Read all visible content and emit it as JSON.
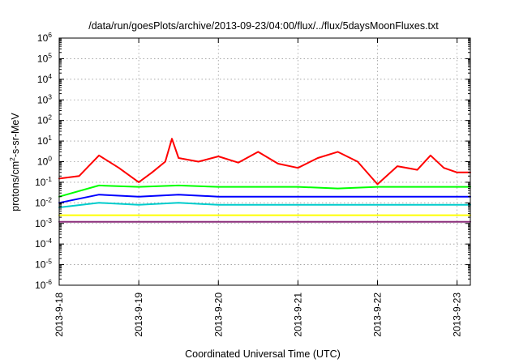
{
  "chart_data": {
    "type": "line",
    "title": "/data/run/goesPlots/archive/2013-09-23/04:00/flux/../flux/5daysMoonFluxes.txt",
    "xlabel": "Coordinated Universal Time (UTC)",
    "ylabel": {
      "before": "protons/cm",
      "sup": "2",
      "after": "-s-sr-MeV"
    },
    "yscale": "log",
    "ylim": [
      1e-06,
      1000000.0
    ],
    "y_ticks": [
      {
        "base": "10",
        "exp": "-6",
        "value": 1e-06
      },
      {
        "base": "10",
        "exp": "-5",
        "value": 1e-05
      },
      {
        "base": "10",
        "exp": "-4",
        "value": 0.0001
      },
      {
        "base": "10",
        "exp": "-3",
        "value": 0.001
      },
      {
        "base": "10",
        "exp": "-2",
        "value": 0.01
      },
      {
        "base": "10",
        "exp": "-1",
        "value": 0.1
      },
      {
        "base": "10",
        "exp": "0",
        "value": 1
      },
      {
        "base": "10",
        "exp": "1",
        "value": 10
      },
      {
        "base": "10",
        "exp": "2",
        "value": 100
      },
      {
        "base": "10",
        "exp": "3",
        "value": 1000
      },
      {
        "base": "10",
        "exp": "4",
        "value": 10000
      },
      {
        "base": "10",
        "exp": "5",
        "value": 100000
      },
      {
        "base": "10",
        "exp": "6",
        "value": 1000000
      }
    ],
    "x_ticks": [
      "2013-9-18",
      "2013-9-19",
      "2013-9-20",
      "2013-9-21",
      "2013-9-22",
      "2013-9-23"
    ],
    "xlim": [
      "2013-09-18T00:00",
      "2013-09-23T04:00"
    ],
    "grid": true,
    "series": [
      {
        "color": "#ff0000",
        "x": [
          "2013-09-18T00:00",
          "2013-09-18T06:00",
          "2013-09-18T12:00",
          "2013-09-18T18:00",
          "2013-09-19T00:00",
          "2013-09-19T04:00",
          "2013-09-19T08:00",
          "2013-09-19T10:00",
          "2013-09-19T12:00",
          "2013-09-19T18:00",
          "2013-09-20T00:00",
          "2013-09-20T06:00",
          "2013-09-20T12:00",
          "2013-09-20T18:00",
          "2013-09-21T00:00",
          "2013-09-21T06:00",
          "2013-09-21T12:00",
          "2013-09-21T18:00",
          "2013-09-22T00:00",
          "2013-09-22T06:00",
          "2013-09-22T12:00",
          "2013-09-22T16:00",
          "2013-09-22T20:00",
          "2013-09-23T00:00",
          "2013-09-23T04:00"
        ],
        "values": [
          0.15,
          0.2,
          2.0,
          0.5,
          0.1,
          0.3,
          1.0,
          13.0,
          1.5,
          1.0,
          1.8,
          0.9,
          3.0,
          0.8,
          0.5,
          1.5,
          3.0,
          1.0,
          0.08,
          0.6,
          0.4,
          2.0,
          0.5,
          0.3,
          0.3
        ]
      },
      {
        "color": "#00ff00",
        "x": [
          "2013-09-18T00:00",
          "2013-09-18T12:00",
          "2013-09-19T00:00",
          "2013-09-19T12:00",
          "2013-09-20T00:00",
          "2013-09-20T12:00",
          "2013-09-21T00:00",
          "2013-09-21T12:00",
          "2013-09-22T00:00",
          "2013-09-22T12:00",
          "2013-09-23T00:00",
          "2013-09-23T04:00"
        ],
        "values": [
          0.02,
          0.07,
          0.06,
          0.07,
          0.06,
          0.06,
          0.06,
          0.05,
          0.06,
          0.06,
          0.06,
          0.06
        ]
      },
      {
        "color": "#0000ff",
        "x": [
          "2013-09-18T00:00",
          "2013-09-18T12:00",
          "2013-09-19T00:00",
          "2013-09-19T12:00",
          "2013-09-20T00:00",
          "2013-09-20T12:00",
          "2013-09-21T00:00",
          "2013-09-21T12:00",
          "2013-09-22T00:00",
          "2013-09-22T12:00",
          "2013-09-23T00:00",
          "2013-09-23T04:00"
        ],
        "values": [
          0.01,
          0.025,
          0.02,
          0.025,
          0.02,
          0.02,
          0.02,
          0.02,
          0.02,
          0.02,
          0.02,
          0.02
        ]
      },
      {
        "color": "#00cccc",
        "x": [
          "2013-09-18T00:00",
          "2013-09-18T12:00",
          "2013-09-19T00:00",
          "2013-09-19T12:00",
          "2013-09-20T00:00",
          "2013-09-20T12:00",
          "2013-09-21T00:00",
          "2013-09-21T12:00",
          "2013-09-22T00:00",
          "2013-09-22T12:00",
          "2013-09-23T00:00",
          "2013-09-23T04:00"
        ],
        "values": [
          0.006,
          0.01,
          0.008,
          0.01,
          0.008,
          0.008,
          0.008,
          0.008,
          0.008,
          0.008,
          0.008,
          0.008
        ]
      },
      {
        "color": "#ffff00",
        "x": [
          "2013-09-18T00:00",
          "2013-09-18T12:00",
          "2013-09-19T00:00",
          "2013-09-19T12:00",
          "2013-09-20T00:00",
          "2013-09-20T12:00",
          "2013-09-21T00:00",
          "2013-09-21T12:00",
          "2013-09-22T00:00",
          "2013-09-22T12:00",
          "2013-09-23T00:00",
          "2013-09-23T04:00"
        ],
        "values": [
          0.0025,
          0.0025,
          0.0025,
          0.0025,
          0.0025,
          0.0025,
          0.0025,
          0.0025,
          0.0025,
          0.0025,
          0.0025,
          0.0025
        ]
      },
      {
        "color": "#8b2f7b",
        "x": [
          "2013-09-18T00:00",
          "2013-09-18T12:00",
          "2013-09-19T00:00",
          "2013-09-19T12:00",
          "2013-09-20T00:00",
          "2013-09-20T12:00",
          "2013-09-21T00:00",
          "2013-09-21T12:00",
          "2013-09-22T00:00",
          "2013-09-22T12:00",
          "2013-09-23T00:00",
          "2013-09-23T04:00"
        ],
        "values": [
          0.0012,
          0.0012,
          0.0012,
          0.0012,
          0.0012,
          0.0012,
          0.0012,
          0.0012,
          0.0012,
          0.0012,
          0.0012,
          0.0012
        ]
      }
    ]
  }
}
